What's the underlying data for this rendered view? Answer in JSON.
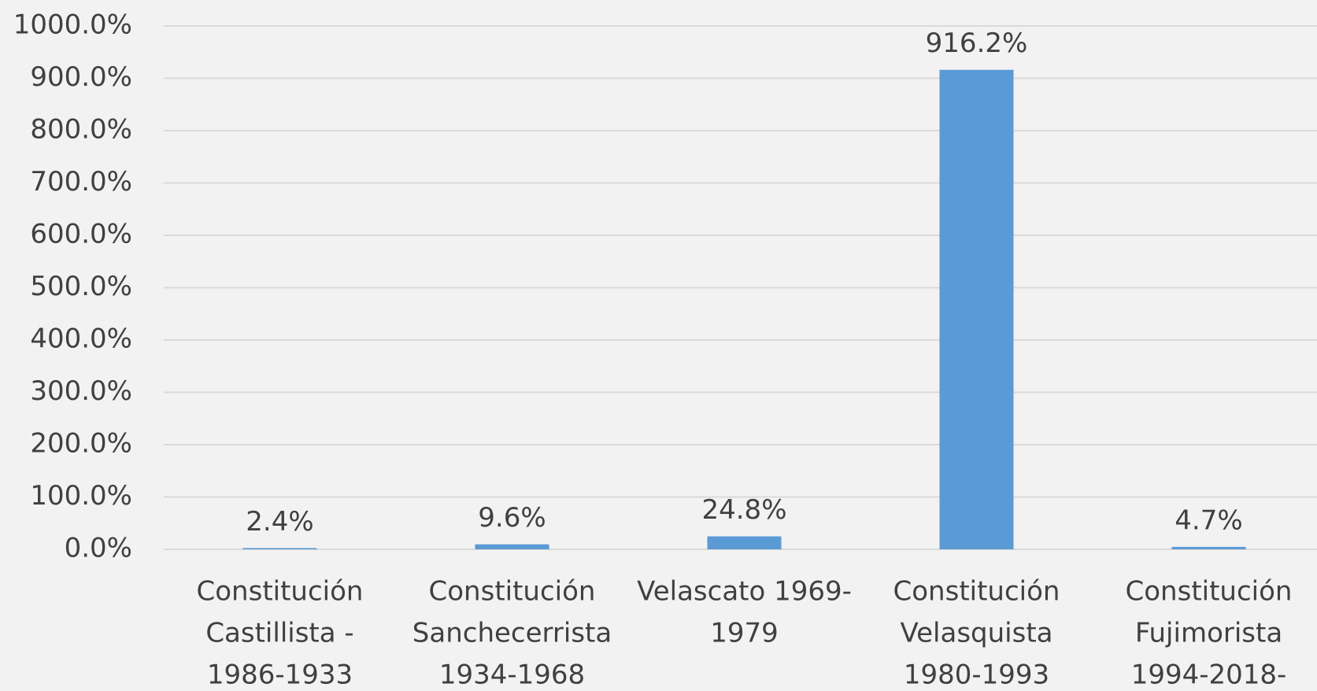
{
  "chart_data": {
    "type": "bar",
    "categories": [
      [
        "Constitución",
        "Castillista -",
        "1986-1933"
      ],
      [
        "Constitución",
        "Sanchecerrista",
        "1934-1968"
      ],
      [
        "Velascato 1969-",
        "1979"
      ],
      [
        "Constitución",
        "Velasquista",
        "1980-1993"
      ],
      [
        "Constitución",
        "Fujimorista",
        "1994-2018-"
      ]
    ],
    "values": [
      2.4,
      9.6,
      24.8,
      916.2,
      4.7
    ],
    "value_labels": [
      "2.4%",
      "9.6%",
      "24.8%",
      "916.2%",
      "4.7%"
    ],
    "color": "#5b9bd5",
    "ylim": [
      0,
      1000
    ],
    "yticks": [
      {
        "value": 0,
        "label": "0.0%"
      },
      {
        "value": 100,
        "label": "100.0%"
      },
      {
        "value": 200,
        "label": "200.0%"
      },
      {
        "value": 300,
        "label": "300.0%"
      },
      {
        "value": 400,
        "label": "400.0%"
      },
      {
        "value": 500,
        "label": "500.0%"
      },
      {
        "value": 600,
        "label": "600.0%"
      },
      {
        "value": 700,
        "label": "700.0%"
      },
      {
        "value": 800,
        "label": "800.0%"
      },
      {
        "value": 900,
        "label": "900.0%"
      },
      {
        "value": 1000,
        "label": "1000.0%"
      }
    ],
    "grid": true
  }
}
